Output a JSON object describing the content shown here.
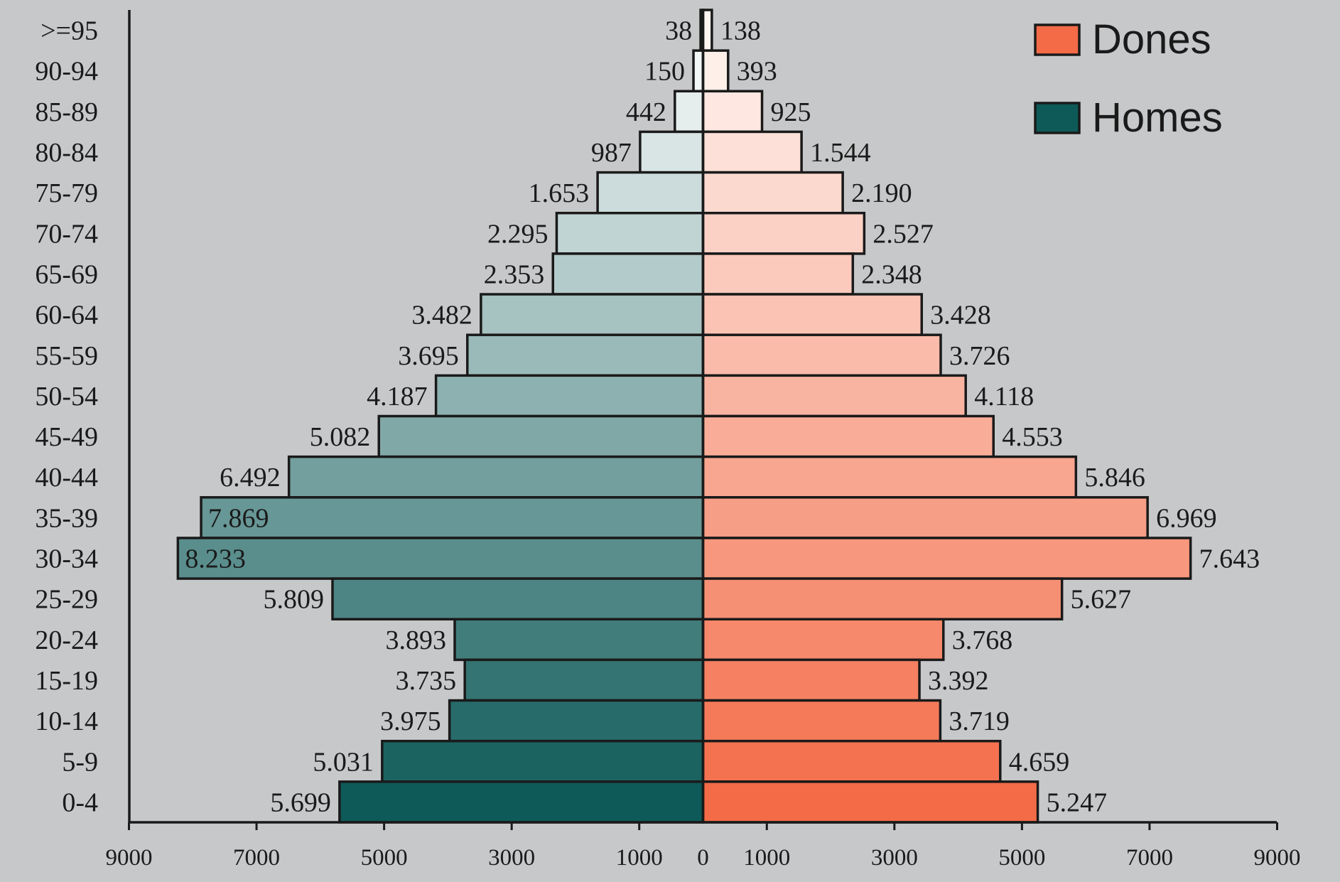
{
  "chart_data": {
    "type": "bar",
    "orientation": "horizontal-population-pyramid",
    "categories": [
      ">=95",
      "90-94",
      "85-89",
      "80-84",
      "75-79",
      "70-74",
      "65-69",
      "60-64",
      "55-59",
      "50-54",
      "45-49",
      "40-44",
      "35-39",
      "30-34",
      "25-29",
      "20-24",
      "15-19",
      "10-14",
      "5-9",
      "0-4"
    ],
    "series": [
      {
        "name": "Homes",
        "side": "left",
        "color": "#0e5a58",
        "values": [
          38,
          150,
          442,
          987,
          1653,
          2295,
          2353,
          3482,
          3695,
          4187,
          5082,
          6492,
          7869,
          8233,
          5809,
          3893,
          3735,
          3975,
          5031,
          5699
        ],
        "labels": [
          "38",
          "150",
          "442",
          "987",
          "1.653",
          "2.295",
          "2.353",
          "3.482",
          "3.695",
          "4.187",
          "5.082",
          "6.492",
          "7.869",
          "8.233",
          "5.809",
          "3.893",
          "3.735",
          "3.975",
          "5.031",
          "5.699"
        ]
      },
      {
        "name": "Dones",
        "side": "right",
        "color": "#f36b47",
        "values": [
          138,
          393,
          925,
          1544,
          2190,
          2527,
          2348,
          3428,
          3726,
          4118,
          4553,
          5846,
          6969,
          7643,
          5627,
          3768,
          3392,
          3719,
          4659,
          5247
        ],
        "labels": [
          "138",
          "393",
          "925",
          "1.544",
          "2.190",
          "2.527",
          "2.348",
          "3.428",
          "3.726",
          "4.118",
          "4.553",
          "5.846",
          "6.969",
          "7.643",
          "5.627",
          "3.768",
          "3.392",
          "3.719",
          "4.659",
          "5.247"
        ]
      }
    ],
    "xlim": [
      -9000,
      9000
    ],
    "x_tick_labels": [
      "9000",
      "7000",
      "5000",
      "3000",
      "1000",
      "0",
      "1000",
      "3000",
      "5000",
      "7000",
      "9000"
    ],
    "x_tick_values": [
      -9000,
      -7000,
      -5000,
      -3000,
      -1000,
      0,
      1000,
      3000,
      5000,
      7000,
      9000
    ],
    "legend": {
      "position": "top-right",
      "entries": [
        "Dones",
        "Homes"
      ]
    },
    "grid": false,
    "colors": {
      "background": "#c7c8ca",
      "homes_old": "#ffffff",
      "homes_young": "#0e5a58",
      "dones_old": "#fff6f2",
      "dones_young": "#f36b47",
      "legend_dones": "#f36b47",
      "legend_homes": "#0e5a58"
    }
  }
}
